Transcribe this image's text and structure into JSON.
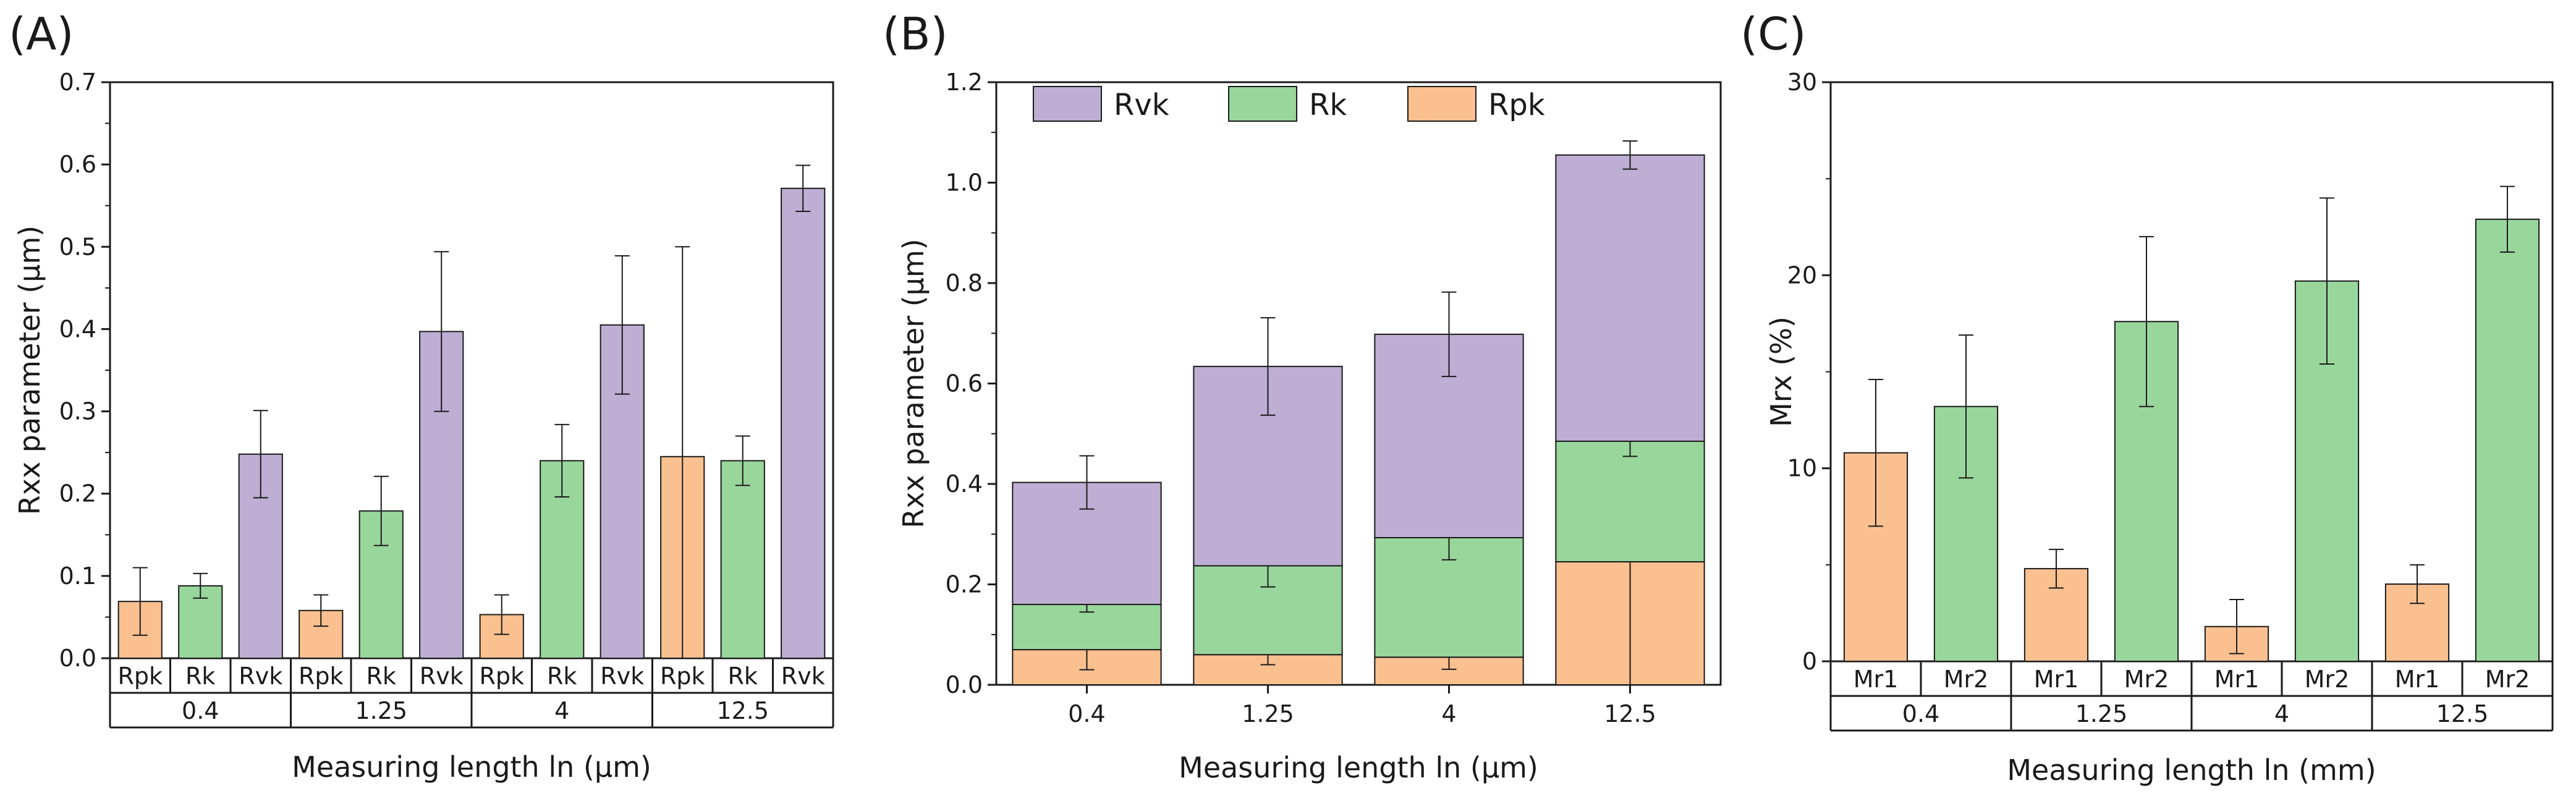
{
  "colors": {
    "rpk": "#fac090",
    "rk": "#99d69c",
    "rvk": "#beaed4",
    "mr1": "#fac090",
    "mr2": "#99d69c",
    "axis": "#1a1a1a"
  },
  "chart_data": [
    {
      "panel": "(A)",
      "type": "bar",
      "xlabel": "Measuring length ln (µm)",
      "ylabel": "Rxx parameter (µm)",
      "ylim": [
        0,
        0.7
      ],
      "yticks": [
        "0.0",
        "0.1",
        "0.2",
        "0.3",
        "0.4",
        "0.5",
        "0.6",
        "0.7"
      ],
      "groups": [
        "0.4",
        "1.25",
        "4",
        "12.5"
      ],
      "series": [
        {
          "name": "Rpk",
          "color_key": "rpk",
          "values": [
            0.069,
            0.058,
            0.053,
            0.245
          ],
          "errors": [
            0.041,
            0.019,
            0.024,
            0.255
          ]
        },
        {
          "name": "Rk",
          "color_key": "rk",
          "values": [
            0.088,
            0.179,
            0.24,
            0.24
          ],
          "errors": [
            0.015,
            0.042,
            0.044,
            0.03
          ]
        },
        {
          "name": "Rvk",
          "color_key": "rvk",
          "values": [
            0.248,
            0.397,
            0.405,
            0.571
          ],
          "errors": [
            0.053,
            0.097,
            0.084,
            0.028
          ]
        }
      ]
    },
    {
      "panel": "(B)",
      "type": "bar",
      "stacked": true,
      "xlabel": "Measuring length ln (µm)",
      "ylabel": "Rxx parameter (µm)",
      "ylim": [
        0,
        1.2
      ],
      "yticks": [
        "0.0",
        "0.2",
        "0.4",
        "0.6",
        "0.8",
        "1.0",
        "1.2"
      ],
      "categories": [
        "0.4",
        "1.25",
        "4",
        "12.5"
      ],
      "legend_position": "top-left",
      "legend_order": [
        "Rvk",
        "Rk",
        "Rpk"
      ],
      "series": [
        {
          "name": "Rpk",
          "color_key": "rpk",
          "values": [
            0.07,
            0.06,
            0.055,
            0.245
          ],
          "errors": [
            0.04,
            0.02,
            0.024,
            0.255
          ]
        },
        {
          "name": "Rk",
          "color_key": "rk",
          "values": [
            0.09,
            0.177,
            0.238,
            0.24
          ],
          "errors": [
            0.015,
            0.042,
            0.044,
            0.03
          ]
        },
        {
          "name": "Rvk",
          "color_key": "rvk",
          "values": [
            0.243,
            0.397,
            0.405,
            0.57
          ],
          "errors": [
            0.053,
            0.097,
            0.084,
            0.028
          ]
        }
      ]
    },
    {
      "panel": "(C)",
      "type": "bar",
      "xlabel": "Measuring length ln (mm)",
      "ylabel": "Mrx (%)",
      "ylim": [
        0,
        30
      ],
      "yticks": [
        "0",
        "10",
        "20",
        "30"
      ],
      "groups": [
        "0.4",
        "1.25",
        "4",
        "12.5"
      ],
      "series": [
        {
          "name": "Mr1",
          "color_key": "mr1",
          "values": [
            10.8,
            4.8,
            1.8,
            4.0
          ],
          "errors": [
            3.8,
            1.0,
            1.4,
            1.0
          ]
        },
        {
          "name": "Mr2",
          "color_key": "mr2",
          "values": [
            13.2,
            17.6,
            19.7,
            22.9
          ],
          "errors": [
            3.7,
            4.4,
            4.3,
            1.7
          ]
        }
      ]
    }
  ]
}
